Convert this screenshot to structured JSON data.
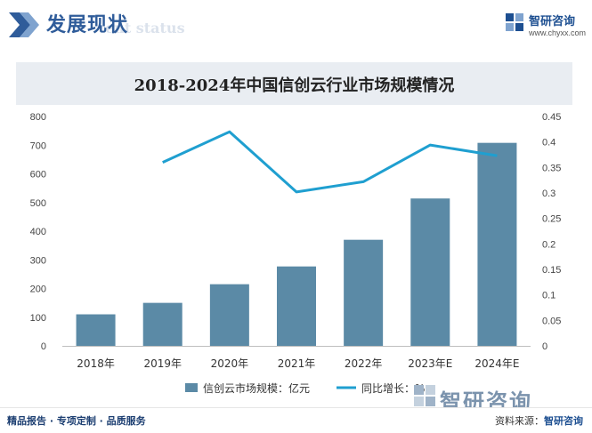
{
  "header": {
    "section_title": "发展现状",
    "section_subtitle": "ent status",
    "brand_name": "智研咨询",
    "brand_url": "www.chyxx.com"
  },
  "chart_data": {
    "type": "bar+line",
    "title": "2018-2024年中国信创云行业市场规模情况",
    "categories": [
      "2018年",
      "2019年",
      "2020年",
      "2021年",
      "2022年",
      "2023年E",
      "2024年E"
    ],
    "series": [
      {
        "name": "信创云市场规模：亿元",
        "type": "bar",
        "axis": "left",
        "color": "#5b8aa6",
        "values": [
          110,
          150,
          215,
          277,
          370,
          514,
          708
        ]
      },
      {
        "name": "同比增长：%",
        "type": "line",
        "axis": "right",
        "color": "#1f9fd0",
        "values": [
          null,
          0.36,
          0.42,
          0.302,
          0.322,
          0.394,
          0.373
        ]
      }
    ],
    "y_left": {
      "min": 0,
      "max": 800,
      "ticks": [
        "0",
        "100",
        "200",
        "300",
        "400",
        "500",
        "600",
        "700",
        "800"
      ]
    },
    "y_right": {
      "min": 0,
      "max": 0.45,
      "ticks": [
        "0",
        "0.05",
        "0.1",
        "0.15",
        "0.2",
        "0.25",
        "0.3",
        "0.35",
        "0.4",
        "0.45"
      ]
    },
    "grid": false,
    "legend": "bottom"
  },
  "watermark": {
    "text": "智研咨询"
  },
  "footer": {
    "left": "精品报告 · 专项定制 · 品质服务",
    "right_label": "资料来源：",
    "right_org": "智研咨询"
  }
}
